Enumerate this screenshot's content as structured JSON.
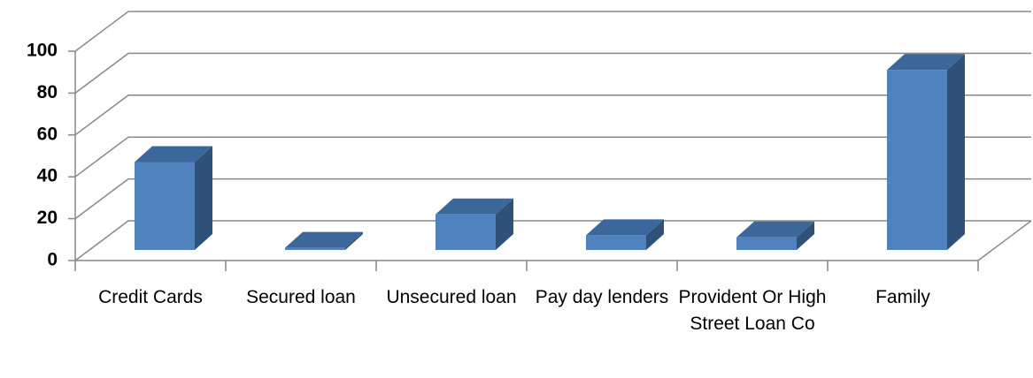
{
  "chart_data": {
    "type": "bar3d",
    "categories": [
      "Credit Cards",
      "Secured loan",
      "Unsecured loan",
      "Pay day lenders",
      "Provident Or High Street Loan Co",
      "Family"
    ],
    "values": [
      42,
      1,
      17,
      7,
      6,
      86
    ],
    "color": "#4f81bd",
    "ylim": [
      0,
      100
    ],
    "yticks": [
      0,
      20,
      40,
      60,
      80,
      100
    ],
    "grid": true
  }
}
